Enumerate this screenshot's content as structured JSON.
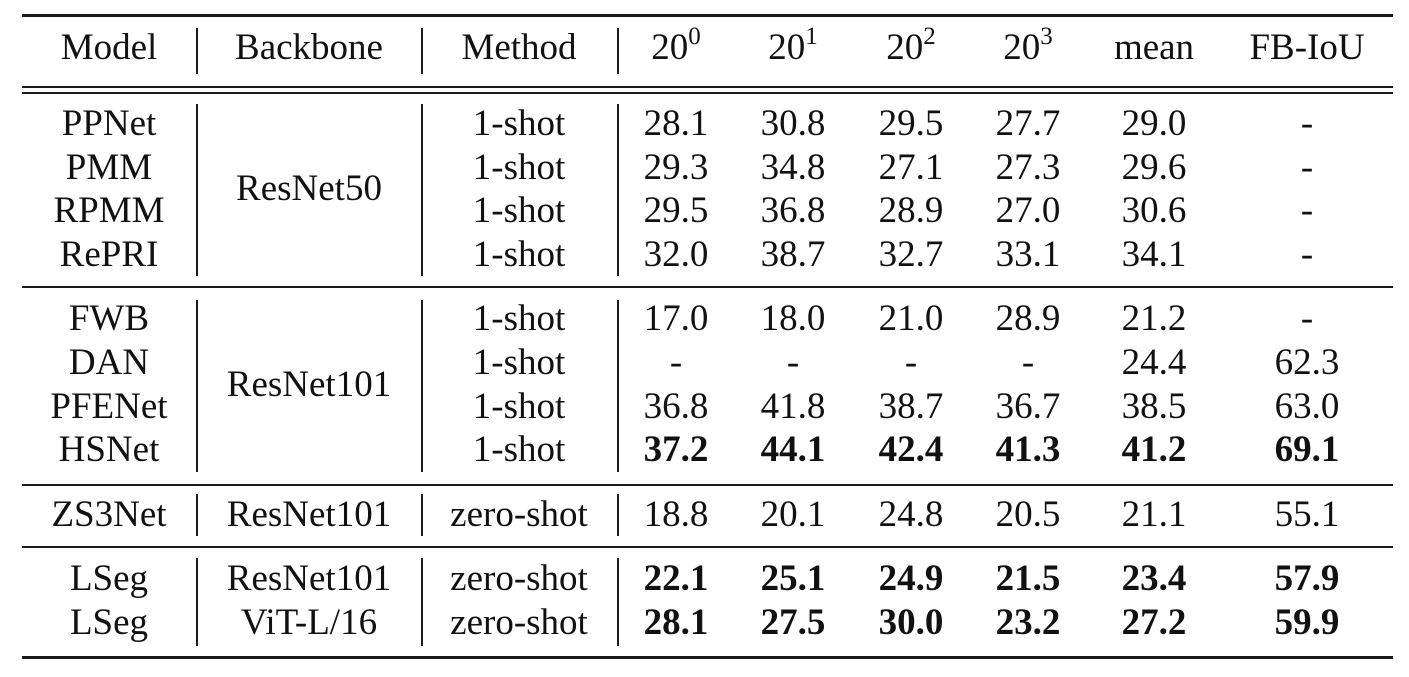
{
  "header": {
    "model": "Model",
    "backbone": "Backbone",
    "method": "Method",
    "fold0_base": "20",
    "fold0_exp": "0",
    "fold1_base": "20",
    "fold1_exp": "1",
    "fold2_base": "20",
    "fold2_exp": "2",
    "fold3_base": "20",
    "fold3_exp": "3",
    "mean": "mean",
    "fbiou": "FB-IoU"
  },
  "groups": [
    {
      "backbone": "ResNet50",
      "rows": [
        {
          "model": "PPNet",
          "method": "1-shot",
          "values": [
            "28.1",
            "30.8",
            "29.5",
            "27.7",
            "29.0",
            "-"
          ],
          "bold": false
        },
        {
          "model": "PMM",
          "method": "1-shot",
          "values": [
            "29.3",
            "34.8",
            "27.1",
            "27.3",
            "29.6",
            "-"
          ],
          "bold": false
        },
        {
          "model": "RPMM",
          "method": "1-shot",
          "values": [
            "29.5",
            "36.8",
            "28.9",
            "27.0",
            "30.6",
            "-"
          ],
          "bold": false
        },
        {
          "model": "RePRI",
          "method": "1-shot",
          "values": [
            "32.0",
            "38.7",
            "32.7",
            "33.1",
            "34.1",
            "-"
          ],
          "bold": false
        }
      ]
    },
    {
      "backbone": "ResNet101",
      "rows": [
        {
          "model": "FWB",
          "method": "1-shot",
          "values": [
            "17.0",
            "18.0",
            "21.0",
            "28.9",
            "21.2",
            "-"
          ],
          "bold": false
        },
        {
          "model": "DAN",
          "method": "1-shot",
          "values": [
            "-",
            "-",
            "-",
            "-",
            "24.4",
            "62.3"
          ],
          "bold": false
        },
        {
          "model": "PFENet",
          "method": "1-shot",
          "values": [
            "36.8",
            "41.8",
            "38.7",
            "36.7",
            "38.5",
            "63.0"
          ],
          "bold": false
        },
        {
          "model": "HSNet",
          "method": "1-shot",
          "values": [
            "37.2",
            "44.1",
            "42.4",
            "41.3",
            "41.2",
            "69.1"
          ],
          "bold": true
        }
      ]
    },
    {
      "backbone": "ResNet101",
      "rows": [
        {
          "model": "ZS3Net",
          "method": "zero-shot",
          "values": [
            "18.8",
            "20.1",
            "24.8",
            "20.5",
            "21.1",
            "55.1"
          ],
          "bold": false
        }
      ]
    },
    {
      "backbone": "",
      "rows": [
        {
          "model": "LSeg",
          "backbone": "ResNet101",
          "method": "zero-shot",
          "values": [
            "22.1",
            "25.1",
            "24.9",
            "21.5",
            "23.4",
            "57.9"
          ],
          "bold": true
        },
        {
          "model": "LSeg",
          "backbone": "ViT-L/16",
          "method": "zero-shot",
          "values": [
            "28.1",
            "27.5",
            "30.0",
            "23.2",
            "27.2",
            "59.9"
          ],
          "bold": true
        }
      ]
    }
  ]
}
